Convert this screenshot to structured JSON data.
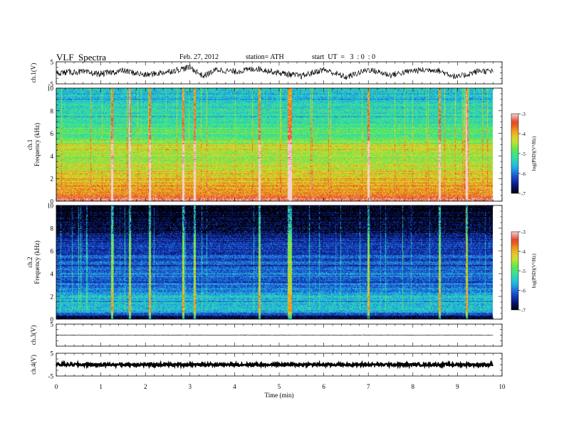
{
  "header": {
    "title": "VLF  Spectra",
    "date": "Feb. 27, 2012",
    "station": "station= ATH",
    "start_ut": "start  UT  =   3  : 0  : 0"
  },
  "colors": {
    "colormap": [
      "#000000",
      "#0a1a8c",
      "#1f56d6",
      "#22b4e6",
      "#2fe0a6",
      "#63e84d",
      "#d7e02c",
      "#f1a320",
      "#e03c1e",
      "#f6d2d2"
    ],
    "trace": "#000000"
  },
  "colorbar": {
    "label": "log(PSD)(V²/Hz)",
    "ticks": [
      "-3",
      "-4",
      "-5",
      "-6",
      "-7"
    ]
  },
  "chart_data": [
    {
      "id": "ch1-waveform",
      "type": "line",
      "ylabel": "ch.1(V)",
      "ylim": [
        -5,
        5
      ],
      "yticks": [
        "5",
        "-5"
      ],
      "xlim": [
        0,
        10
      ],
      "data_extent": [
        0,
        9.8
      ],
      "mean_trace": [
        [
          0.0,
          0.0
        ],
        [
          0.5,
          0.5
        ],
        [
          1.0,
          -0.5
        ],
        [
          1.5,
          1.0
        ],
        [
          2.0,
          -1.0
        ],
        [
          2.5,
          0.5
        ],
        [
          3.0,
          2.5
        ],
        [
          3.3,
          -1.5
        ],
        [
          3.6,
          1.5
        ],
        [
          4.0,
          0.5
        ],
        [
          4.5,
          2.0
        ],
        [
          5.0,
          0.0
        ],
        [
          5.5,
          -1.5
        ],
        [
          6.0,
          1.5
        ],
        [
          6.5,
          -2.0
        ],
        [
          7.0,
          1.5
        ],
        [
          7.5,
          -1.0
        ],
        [
          8.0,
          1.0
        ],
        [
          8.5,
          1.5
        ],
        [
          9.0,
          -2.0
        ],
        [
          9.5,
          1.0
        ],
        [
          9.8,
          0.5
        ]
      ]
    },
    {
      "id": "ch1-spectrogram",
      "type": "heatmap",
      "ylabel": "ch.1\nFrequency  (kHz)",
      "ylim": [
        0,
        10
      ],
      "yticks": [
        "10",
        "8",
        "6",
        "4",
        "2",
        "0"
      ],
      "xlim": [
        0,
        10
      ],
      "data_extent": [
        0,
        9.8
      ],
      "zlim": [
        -7,
        -3
      ],
      "level_by_band_log_psd": [
        [
          0.0,
          -3.2
        ],
        [
          0.3,
          -3.6
        ],
        [
          0.6,
          -4.0
        ],
        [
          1.0,
          -3.8
        ],
        [
          1.5,
          -4.1
        ],
        [
          2.0,
          -4.0
        ],
        [
          2.5,
          -4.2
        ],
        [
          3.0,
          -4.4
        ],
        [
          3.5,
          -4.6
        ],
        [
          4.0,
          -4.4
        ],
        [
          4.5,
          -4.3
        ],
        [
          5.0,
          -4.5
        ],
        [
          5.5,
          -4.9
        ],
        [
          6.0,
          -5.0
        ],
        [
          7.0,
          -5.2
        ],
        [
          8.0,
          -5.3
        ],
        [
          9.0,
          -5.5
        ],
        [
          10.0,
          -5.6
        ]
      ],
      "impulsive_events_min": [
        1.25,
        1.65,
        2.1,
        2.85,
        3.1,
        4.55,
        5.2,
        5.25,
        7.0,
        8.6,
        9.2
      ]
    },
    {
      "id": "ch2-spectrogram",
      "type": "heatmap",
      "ylabel": "ch.2\nFrequency  (kHz)",
      "ylim": [
        0,
        10
      ],
      "yticks": [
        "10",
        "8",
        "6",
        "4",
        "2",
        "0"
      ],
      "xlim": [
        0,
        10
      ],
      "data_extent": [
        0,
        9.8
      ],
      "zlim": [
        -7,
        -3
      ],
      "level_by_band_log_psd": [
        [
          0.0,
          -6.8
        ],
        [
          0.3,
          -6.5
        ],
        [
          0.6,
          -5.5
        ],
        [
          1.0,
          -5.6
        ],
        [
          1.5,
          -5.7
        ],
        [
          2.0,
          -5.6
        ],
        [
          2.5,
          -5.8
        ],
        [
          3.0,
          -6.0
        ],
        [
          3.5,
          -6.2
        ],
        [
          4.0,
          -6.0
        ],
        [
          4.5,
          -6.1
        ],
        [
          5.0,
          -6.2
        ],
        [
          5.5,
          -6.0
        ],
        [
          6.0,
          -6.3
        ],
        [
          7.0,
          -6.4
        ],
        [
          8.0,
          -6.6
        ],
        [
          9.0,
          -6.8
        ],
        [
          10.0,
          -6.9
        ]
      ],
      "impulsive_events_min": [
        1.25,
        1.65,
        2.1,
        2.85,
        3.1,
        4.55,
        5.2,
        5.25,
        7.0,
        8.6,
        9.2
      ]
    },
    {
      "id": "ch3-waveform",
      "type": "line",
      "ylabel": "ch.3(V)",
      "ylim": [
        -5,
        5
      ],
      "yticks": [
        "5"
      ],
      "xlim": [
        0,
        10
      ],
      "data_extent": [
        0,
        9.8
      ],
      "mean_value": 0.0
    },
    {
      "id": "ch4-waveform",
      "type": "line",
      "ylabel": "ch.4(V)",
      "ylim": [
        -5,
        5
      ],
      "yticks": [
        "5",
        "-5"
      ],
      "xlim": [
        0,
        10
      ],
      "data_extent": [
        0,
        9.8
      ],
      "mean_value": 0.0,
      "xlabel": "Time  (min)",
      "xticks": [
        "0",
        "1",
        "2",
        "3",
        "4",
        "5",
        "6",
        "7",
        "8",
        "9",
        "10"
      ]
    }
  ]
}
